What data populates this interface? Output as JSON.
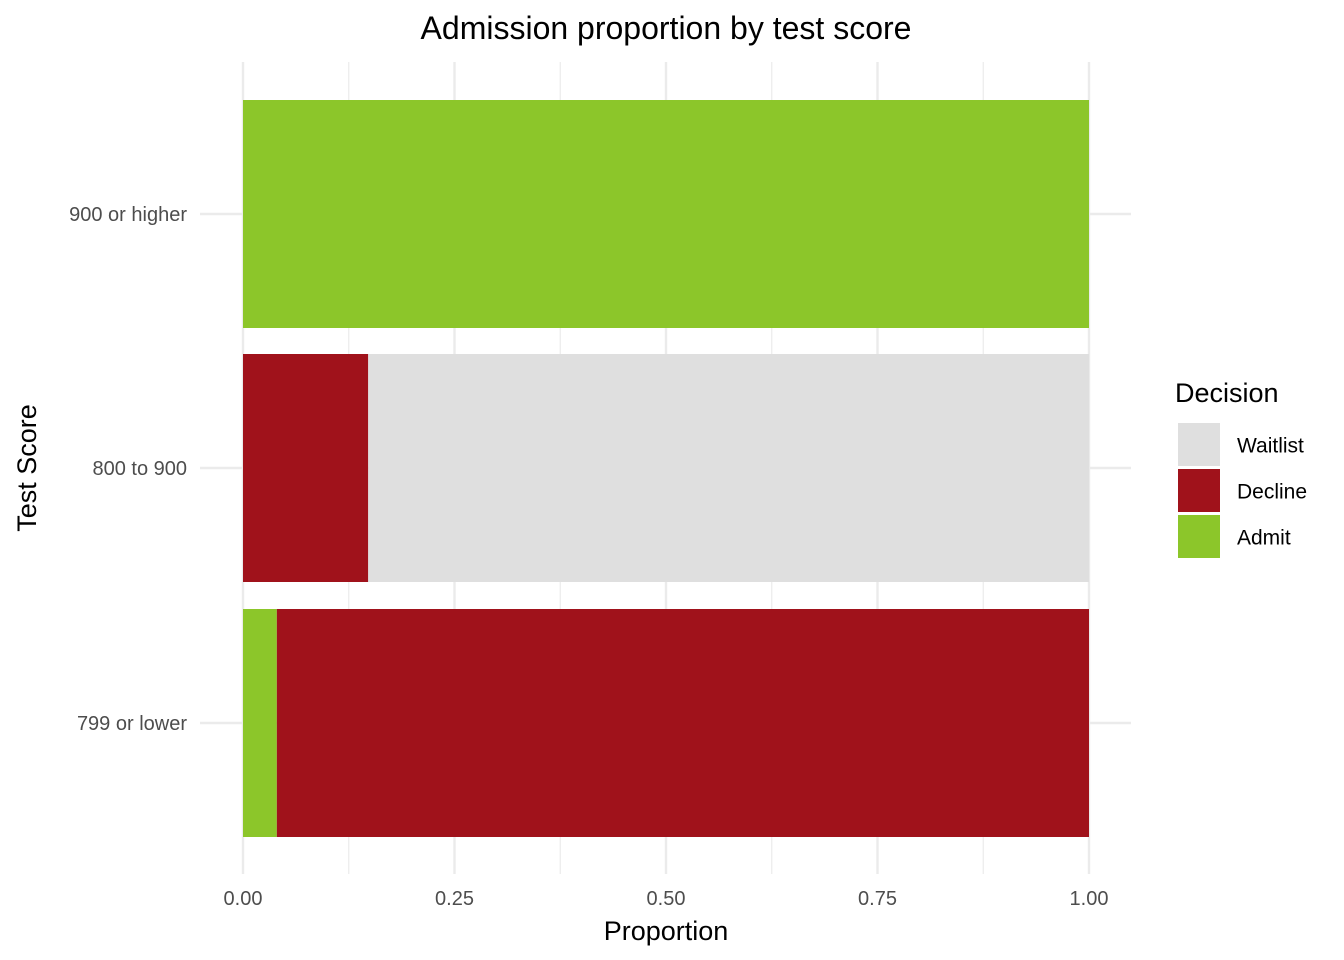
{
  "chart_data": {
    "type": "bar",
    "orientation": "horizontal",
    "stacked": true,
    "normalized": true,
    "title": "Admission proportion by test score",
    "xlabel": "Proportion",
    "ylabel": "Test Score",
    "xlim": [
      0,
      1
    ],
    "x_ticks": [
      "0.00",
      "0.25",
      "0.50",
      "0.75",
      "1.00"
    ],
    "x_tick_values": [
      0,
      0.25,
      0.5,
      0.75,
      1.0
    ],
    "categories": [
      "799 or lower",
      "800 to 900",
      "900 or higher"
    ],
    "series": [
      {
        "name": "Admit",
        "color": "#8cc62a",
        "values": [
          0.04,
          0.0,
          1.0
        ]
      },
      {
        "name": "Decline",
        "color": "#a0121b",
        "values": [
          0.96,
          0.148,
          0.0
        ]
      },
      {
        "name": "Waitlist",
        "color": "#dfdfdf",
        "values": [
          0.0,
          0.852,
          0.0
        ]
      }
    ],
    "legend": {
      "title": "Decision",
      "placement": "right",
      "entries": [
        "Waitlist",
        "Decline",
        "Admit"
      ]
    },
    "grid": true,
    "grid_color": "#ebebeb"
  }
}
